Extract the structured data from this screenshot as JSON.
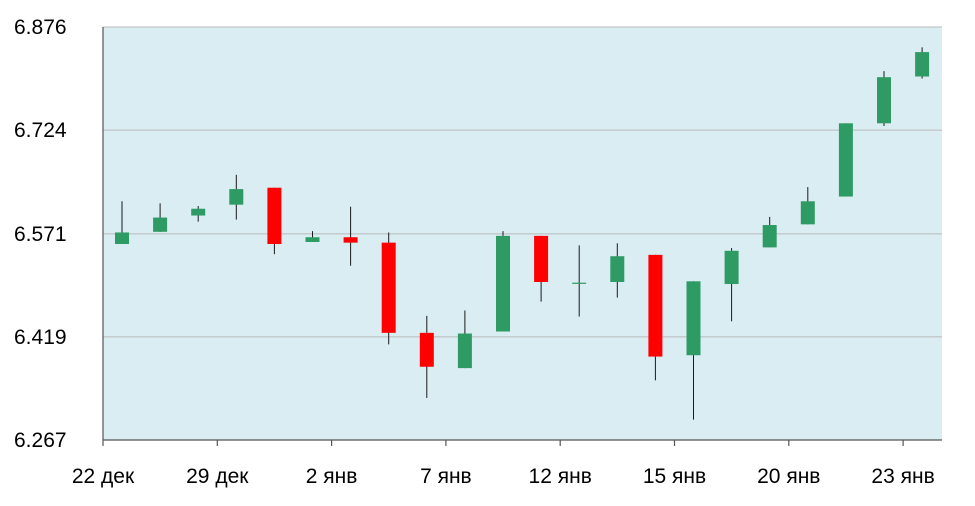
{
  "colors": {
    "plot_background": "#daedf3",
    "gridline": "#b9b9b9",
    "up": "#2e9b64",
    "down": "#ff0000",
    "wick": "#1a1a1a",
    "axis": "#555555"
  },
  "chart_data": {
    "type": "candlestick",
    "title": "",
    "xlabel": "",
    "ylabel": "",
    "ylim": [
      6.267,
      6.876
    ],
    "y_ticks": [
      "6.876",
      "6.724",
      "6.571",
      "6.419",
      "6.267"
    ],
    "x_tick_labels": [
      "22 дек",
      "29 дек",
      "2 янв",
      "7 янв",
      "12 янв",
      "15 янв",
      "20 янв",
      "23 янв"
    ],
    "grid": true,
    "candles": [
      {
        "open": 6.556,
        "close": 6.573,
        "high": 6.619,
        "low": 6.556
      },
      {
        "open": 6.574,
        "close": 6.595,
        "high": 6.616,
        "low": 6.574
      },
      {
        "open": 6.598,
        "close": 6.608,
        "high": 6.612,
        "low": 6.589
      },
      {
        "open": 6.614,
        "close": 6.637,
        "high": 6.658,
        "low": 6.592
      },
      {
        "open": 6.639,
        "close": 6.556,
        "high": 6.639,
        "low": 6.541
      },
      {
        "open": 6.559,
        "close": 6.566,
        "high": 6.575,
        "low": 6.559
      },
      {
        "open": 6.566,
        "close": 6.558,
        "high": 6.611,
        "low": 6.524
      },
      {
        "open": 6.558,
        "close": 6.425,
        "high": 6.573,
        "low": 6.408
      },
      {
        "open": 6.425,
        "close": 6.375,
        "high": 6.45,
        "low": 6.329
      },
      {
        "open": 6.373,
        "close": 6.424,
        "high": 6.458,
        "low": 6.373
      },
      {
        "open": 6.427,
        "close": 6.568,
        "high": 6.575,
        "low": 6.427
      },
      {
        "open": 6.568,
        "close": 6.5,
        "high": 6.568,
        "low": 6.471
      },
      {
        "open": 6.499,
        "close": 6.499,
        "high": 6.554,
        "low": 6.449
      },
      {
        "open": 6.5,
        "close": 6.538,
        "high": 6.557,
        "low": 6.477
      },
      {
        "open": 6.54,
        "close": 6.39,
        "high": 6.54,
        "low": 6.355
      },
      {
        "open": 6.392,
        "close": 6.501,
        "high": 6.501,
        "low": 6.297
      },
      {
        "open": 6.497,
        "close": 6.546,
        "high": 6.55,
        "low": 6.442
      },
      {
        "open": 6.551,
        "close": 6.584,
        "high": 6.596,
        "low": 6.551
      },
      {
        "open": 6.585,
        "close": 6.619,
        "high": 6.64,
        "low": 6.585
      },
      {
        "open": 6.626,
        "close": 6.734,
        "high": 6.734,
        "low": 6.626
      },
      {
        "open": 6.734,
        "close": 6.802,
        "high": 6.811,
        "low": 6.73
      },
      {
        "open": 6.803,
        "close": 6.839,
        "high": 6.846,
        "low": 6.8
      }
    ]
  }
}
